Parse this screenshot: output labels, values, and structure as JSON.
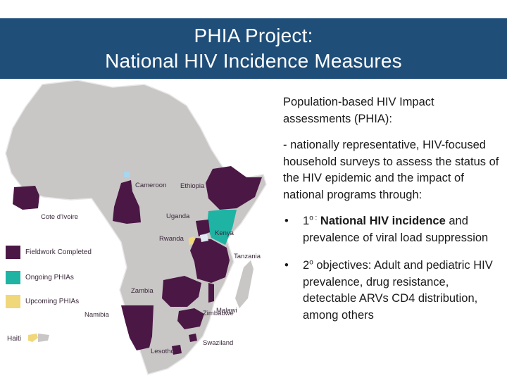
{
  "header": {
    "title_line1": "PHIA Project:",
    "title_line2": "National HIV Incidence Measures"
  },
  "colors": {
    "header_bg": "#1f4e79",
    "fieldwork_completed": "#4b1745",
    "ongoing": "#1fb3a3",
    "upcoming": "#f0d77a",
    "land": "#c9c6c6"
  },
  "map": {
    "labels": {
      "cameroon": "Cameroon",
      "ethiopia": "Ethiopia",
      "cote_divoire": "Cote d'Ivoire",
      "uganda": "Uganda",
      "kenya": "Kenya",
      "rwanda": "Rwanda",
      "tanzania": "Tanzania",
      "zambia": "Zambia",
      "malawi": "Malawi",
      "namibia": "Namibia",
      "zimbabwe": "Zimbabwe",
      "swaziland": "Swaziland",
      "lesotho": "Lesotho",
      "haiti": "Haiti"
    },
    "legend": [
      {
        "label": "Fieldwork Completed",
        "color": "#4b1745"
      },
      {
        "label": "Ongoing PHIAs",
        "color": "#1fb3a3"
      },
      {
        "label": "Upcoming PHIAs",
        "color": "#f0d77a"
      }
    ]
  },
  "body": {
    "intro": "Population-based HIV Impact assessments (PHIA):",
    "description": "- nationally representative, HIV-focused household surveys to assess the status of the HIV epidemic and the impact of national programs through:",
    "bullet_symbol": "•",
    "bullet1": {
      "num": "1",
      "sup": "o :",
      "bold": "National HIV incidence",
      "rest": "and prevalence of viral load suppression"
    },
    "bullet2": {
      "num": "2",
      "sup": "o",
      "rest": "objectives:  Adult and pediatric HIV prevalence, drug resistance, detectable ARVs CD4 distribution, among others"
    }
  }
}
